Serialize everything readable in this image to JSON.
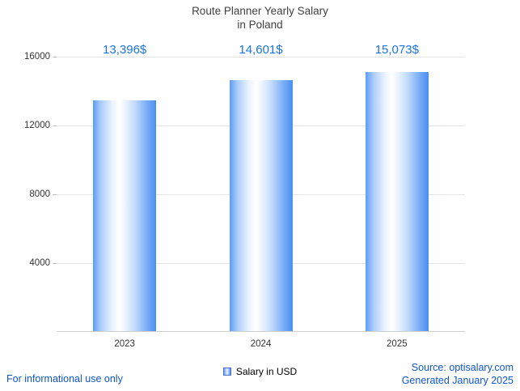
{
  "title": {
    "line1": "Route Planner Yearly Salary",
    "line2": "in Poland"
  },
  "chart_data": {
    "type": "bar",
    "title": "Route Planner Yearly Salary in Poland",
    "categories": [
      "2023",
      "2024",
      "2025"
    ],
    "values": [
      13396,
      14601,
      15073
    ],
    "value_labels": [
      "13,396$",
      "14,601$",
      "15,073$"
    ],
    "series": [
      {
        "name": "Salary in USD",
        "values": [
          13396,
          14601,
          15073
        ]
      }
    ],
    "xlabel": "",
    "ylabel": "",
    "ylim": [
      0,
      16000
    ],
    "yticks": [
      4000,
      8000,
      12000,
      16000
    ],
    "grid": true,
    "legend_position": "bottom"
  },
  "legend": {
    "label": "Salary in USD"
  },
  "footer": {
    "left": "For informational use only",
    "source": "Source: optisalary.com",
    "generated": "Generated January 2025"
  },
  "colors": {
    "accent_blue": "#1a73e8",
    "footer_blue": "#1155cc",
    "bar_edge_blue": "#4a8ef2",
    "bar_mid": "#ffffff",
    "grid_gray": "#e4e4e4",
    "title_gray": "#404040"
  }
}
